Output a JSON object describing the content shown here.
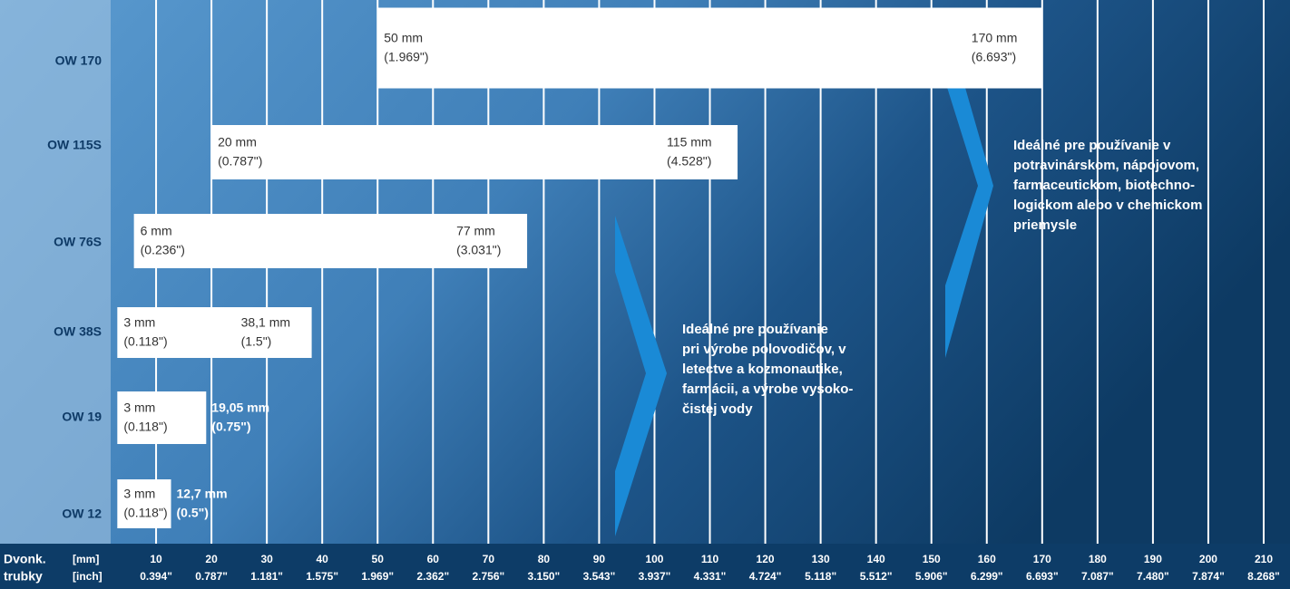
{
  "chart_data": {
    "type": "range-bar",
    "categories": [
      "OW 170",
      "OW 115S",
      "OW 76S",
      "OW 38S",
      "OW 19",
      "OW 12"
    ],
    "starts": [
      50,
      20,
      6,
      3,
      3,
      3
    ],
    "ends": [
      170,
      115,
      77,
      38.1,
      19.05,
      12.7
    ],
    "start_labels": [
      [
        "50 mm",
        "(1.969\")"
      ],
      [
        "20 mm",
        "(0.787\")"
      ],
      [
        "6 mm",
        "(0.236\")"
      ],
      [
        "3 mm",
        "(0.118\")"
      ],
      [
        "3 mm",
        "(0.118\")"
      ],
      [
        "3 mm",
        "(0.118\")"
      ]
    ],
    "end_labels": [
      [
        "170 mm",
        "(6.693\")"
      ],
      [
        "115 mm",
        "(4.528\")"
      ],
      [
        "77 mm",
        "(3.031\")"
      ],
      [
        "38,1 mm",
        "(1.5\")"
      ],
      [
        "19,05 mm",
        "(0.75\")"
      ],
      [
        "12,7 mm",
        "(0.5\")"
      ]
    ],
    "color": "#ffffff",
    "xlim": [
      0,
      210
    ],
    "xticks": [
      10,
      20,
      30,
      40,
      50,
      60,
      70,
      80,
      90,
      100,
      110,
      120,
      130,
      140,
      150,
      160,
      170,
      180,
      190,
      200,
      210
    ],
    "xticks_inch": [
      "0.394\"",
      "0.787\"",
      "1.181\"",
      "1.575\"",
      "1.969\"",
      "2.362\"",
      "2.756\"",
      "3.150\"",
      "3.543\"",
      "3.937\"",
      "4.331\"",
      "4.724\"",
      "5.118\"",
      "5.512\"",
      "5.906\"",
      "6.299\"",
      "6.693\"",
      "7.087\"",
      "7.480\"",
      "7.874\"",
      "8.268\""
    ],
    "x_axis_label": [
      "Dvonk.",
      "trubky"
    ],
    "x_units": [
      "[mm]",
      "[inch]"
    ],
    "grid": true,
    "annotations": [
      [
        "Ideálné pre používanie",
        "pri výrobe polovodičov, v",
        "letectve a kozmonautike,",
        "farmácii, a výrobe vysoko-",
        "čistej vody"
      ],
      [
        "Ideálné pre používanie v",
        "potravinárskom, nápojovom,",
        "farmaceutickom, biotechno-",
        "logickom alebo v chemickom",
        "priemysle"
      ]
    ]
  }
}
